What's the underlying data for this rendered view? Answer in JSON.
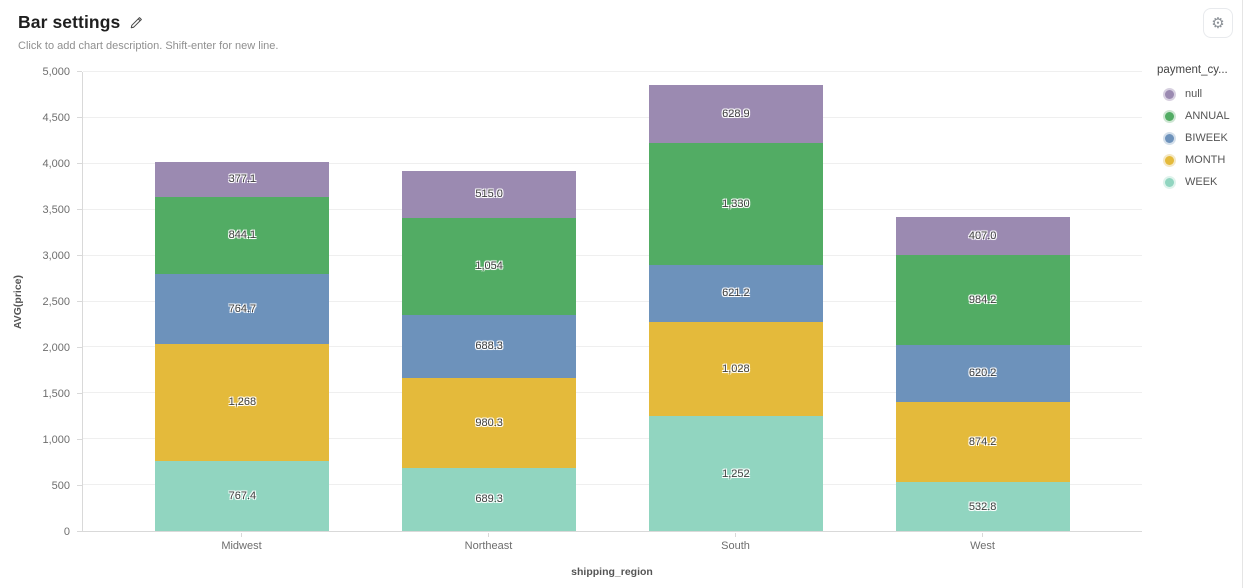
{
  "header": {
    "title": "Bar settings",
    "subtitle": "Click to add chart description. Shift-enter for new line."
  },
  "icons": {
    "edit": "pencil-icon",
    "settings": "gear-icon",
    "gear_glyph": "⚙"
  },
  "colors": {
    "series": {
      "null": "#9b8ab1",
      "ANNUAL": "#52ac64",
      "BIWEEK": "#6d92bb",
      "MONTH": "#e4ba3b",
      "WEEK": "#91d5c0"
    },
    "legend_rings": {
      "null": "#d7d0e0",
      "ANNUAL": "#cde6d2",
      "BIWEEK": "#d4dfea",
      "MONTH": "#f4e8c5",
      "WEEK": "#dff3ec"
    },
    "grid": "#efefef",
    "axis": "#d9d9d9",
    "bar_label_text": "#3f3f3f"
  },
  "chart_data": {
    "type": "bar",
    "stacked": true,
    "title": "Bar settings",
    "xlabel": "shipping_region",
    "ylabel": "AVG(price)",
    "ylim": [
      0,
      5000
    ],
    "grid": true,
    "legend_position": "right",
    "legend_title": "payment_cy...",
    "categories": [
      "Midwest",
      "Northeast",
      "South",
      "West"
    ],
    "yticks": [
      "0",
      "500",
      "1,000",
      "1,500",
      "2,000",
      "2,500",
      "3,000",
      "3,500",
      "4,000",
      "4,500",
      "5,000"
    ],
    "series": [
      {
        "name": "WEEK",
        "color": "#91d5c0",
        "values": [
          767.4,
          689.3,
          1252,
          532.8
        ],
        "labels": [
          "767.4",
          "689.3",
          "1,252",
          "532.8"
        ]
      },
      {
        "name": "MONTH",
        "color": "#e4ba3b",
        "values": [
          1268,
          980.3,
          1028,
          874.2
        ],
        "labels": [
          "1,268",
          "980.3",
          "1,028",
          "874.2"
        ]
      },
      {
        "name": "BIWEEK",
        "color": "#6d92bb",
        "values": [
          764.7,
          688.3,
          621.2,
          620.2
        ],
        "labels": [
          "764.7",
          "688.3",
          "621.2",
          "620.2"
        ]
      },
      {
        "name": "ANNUAL",
        "color": "#52ac64",
        "values": [
          844.1,
          1054,
          1330,
          984.2
        ],
        "labels": [
          "844.1",
          "1,054",
          "1,330",
          "984.2"
        ]
      },
      {
        "name": "null",
        "color": "#9b8ab1",
        "values": [
          377.1,
          515,
          628.9,
          407
        ],
        "labels": [
          "377.1",
          "515.0",
          "628.9",
          "407.0"
        ]
      }
    ],
    "legend_order": [
      "null",
      "ANNUAL",
      "BIWEEK",
      "MONTH",
      "WEEK"
    ]
  }
}
